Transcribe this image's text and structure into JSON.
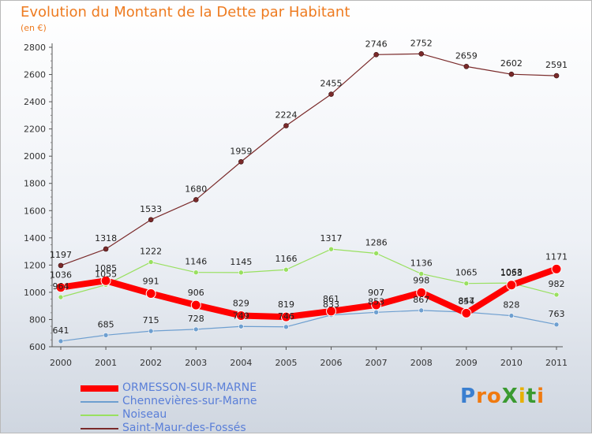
{
  "title": "Evolution du Montant de la Dette par Habitant",
  "subtitle": "(en €)",
  "logo": "ProXiti",
  "chart_data": {
    "type": "line",
    "x": [
      "2000",
      "2001",
      "2002",
      "2003",
      "2004",
      "2005",
      "2006",
      "2007",
      "2008",
      "2009",
      "2010",
      "2011"
    ],
    "ylim": [
      600,
      2800
    ],
    "yticks": [
      600,
      800,
      1000,
      1200,
      1400,
      1600,
      1800,
      2000,
      2200,
      2400,
      2600,
      2800
    ],
    "grid": false,
    "legend_position": "bottom-left",
    "series": [
      {
        "name": "ORMESSON-SUR-MARNE",
        "color": "#ff0000",
        "values": [
          1036,
          1085,
          991,
          906,
          829,
          819,
          861,
          907,
          998,
          847,
          1053,
          1171
        ]
      },
      {
        "name": "Chennevières-sur-Marne",
        "color": "#6e9fd0",
        "values": [
          641,
          685,
          715,
          728,
          749,
          746,
          833,
          853,
          867,
          854,
          828,
          763
        ]
      },
      {
        "name": "Noiseau",
        "color": "#99e060",
        "values": [
          964,
          1055,
          1222,
          1146,
          1145,
          1166,
          1317,
          1286,
          1136,
          1065,
          1068,
          982
        ]
      },
      {
        "name": "Saint-Maur-des-Fossés",
        "color": "#7a2a2a",
        "values": [
          1197,
          1318,
          1533,
          1680,
          1959,
          2224,
          2455,
          2746,
          2752,
          2659,
          2602,
          2591
        ]
      }
    ]
  }
}
